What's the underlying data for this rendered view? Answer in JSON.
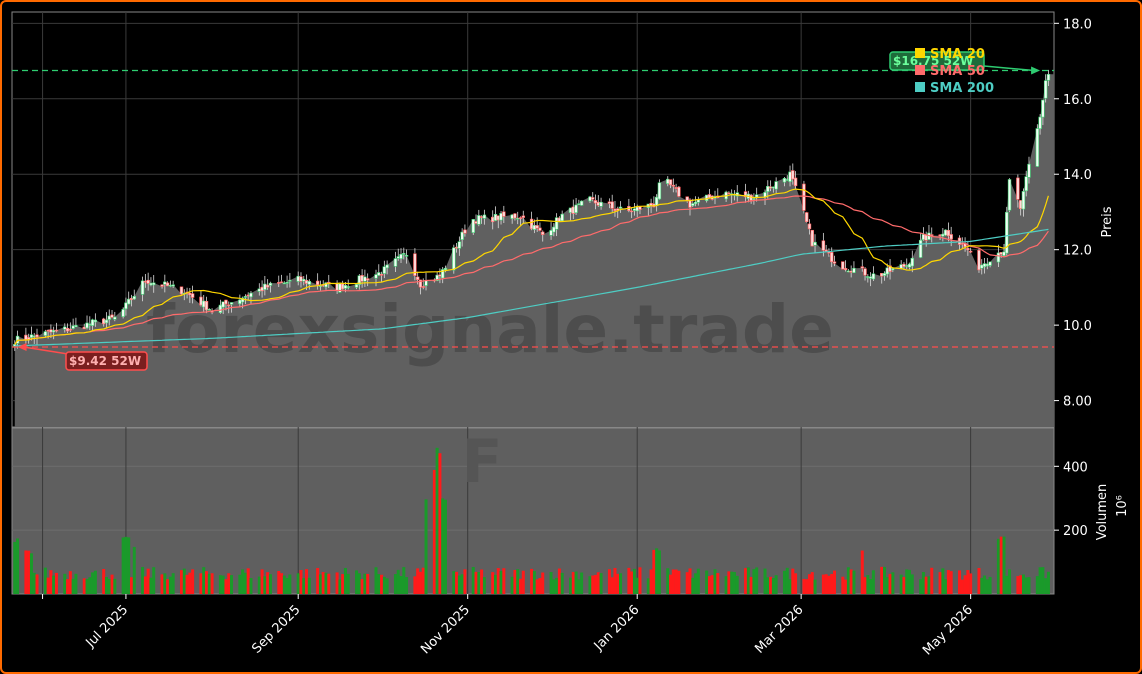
{
  "chart_data": {
    "type": "candlestick",
    "watermark": "forexsignale.trade",
    "ticker": "F",
    "price_axis": {
      "label": "Preis",
      "ylim": [
        7.3,
        18.3
      ],
      "ticks": [
        8.0,
        10.0,
        12.0,
        14.0,
        16.0,
        18.0
      ],
      "tick_labels": [
        "8.00",
        "10.0",
        "12.0",
        "14.0",
        "16.0",
        "18.0"
      ]
    },
    "volume_axis": {
      "label": "Volumen",
      "unit": "10⁶",
      "ylim": [
        0,
        520
      ],
      "ticks": [
        200,
        400
      ],
      "tick_labels": [
        "200",
        "400"
      ]
    },
    "x_axis": {
      "range": [
        "2025-05-21",
        "2026-05-31"
      ],
      "ticks": [
        "2025-06-01",
        "2025-07-01",
        "2025-09-01",
        "2025-11-01",
        "2026-01-01",
        "2026-03-01",
        "2026-05-01"
      ],
      "tick_labels": [
        "",
        "Jul 2025",
        "Sep 2025",
        "Nov 2025",
        "Jan 2026",
        "Mar 2026",
        "May 2026"
      ]
    },
    "legend": {
      "placement": "top-right",
      "items": [
        {
          "label": "SMA 20",
          "color": "#ffd700"
        },
        {
          "label": "SMA 50",
          "color": "#ff6b6b"
        },
        {
          "label": "SMA 200",
          "color": "#4ecdc4"
        }
      ]
    },
    "annotations": {
      "high_52w": {
        "value": 16.75,
        "label": "$16.75 52W",
        "date": "2026-05-26",
        "color": "#2ecc71"
      },
      "low_52w": {
        "value": 9.42,
        "label": "$9.42 52W",
        "date": "2025-05-23",
        "color": "#ff4d4d"
      }
    },
    "price_keypoints": [
      [
        "2025-05-22",
        9.6
      ],
      [
        "2025-06-10",
        9.9
      ],
      [
        "2025-06-28",
        10.2
      ],
      [
        "2025-07-08",
        11.2
      ],
      [
        "2025-07-22",
        10.9
      ],
      [
        "2025-08-01",
        10.4
      ],
      [
        "2025-08-20",
        11.0
      ],
      [
        "2025-09-01",
        11.2
      ],
      [
        "2025-09-15",
        11.0
      ],
      [
        "2025-10-01",
        11.4
      ],
      [
        "2025-10-10",
        11.9
      ],
      [
        "2025-10-15",
        11.1
      ],
      [
        "2025-10-22",
        11.3
      ],
      [
        "2025-10-28",
        12.1
      ],
      [
        "2025-11-02",
        12.8
      ],
      [
        "2025-11-20",
        12.9
      ],
      [
        "2025-11-28",
        12.4
      ],
      [
        "2025-12-05",
        12.9
      ],
      [
        "2025-12-15",
        13.3
      ],
      [
        "2025-12-28",
        13.0
      ],
      [
        "2026-01-07",
        13.2
      ],
      [
        "2026-01-10",
        13.9
      ],
      [
        "2026-01-20",
        13.2
      ],
      [
        "2026-02-01",
        13.5
      ],
      [
        "2026-02-12",
        13.4
      ],
      [
        "2026-02-25",
        14.0
      ],
      [
        "2026-03-01",
        13.2
      ],
      [
        "2026-03-05",
        12.2
      ],
      [
        "2026-03-15",
        11.6
      ],
      [
        "2026-03-28",
        11.3
      ],
      [
        "2026-04-08",
        11.6
      ],
      [
        "2026-04-14",
        12.3
      ],
      [
        "2026-04-22",
        12.5
      ],
      [
        "2026-04-30",
        12.0
      ],
      [
        "2026-05-03",
        11.5
      ],
      [
        "2026-05-10",
        11.9
      ],
      [
        "2026-05-13",
        12.0
      ],
      [
        "2026-05-15",
        13.8
      ],
      [
        "2026-05-19",
        13.1
      ],
      [
        "2026-05-22",
        14.2
      ],
      [
        "2026-05-26",
        15.5
      ],
      [
        "2026-05-28",
        16.5
      ],
      [
        "2026-05-30",
        16.8
      ]
    ],
    "sma200_keypoints": [
      [
        "2025-05-22",
        9.45
      ],
      [
        "2025-08-01",
        9.65
      ],
      [
        "2025-10-01",
        9.9
      ],
      [
        "2025-11-01",
        10.2
      ],
      [
        "2026-01-01",
        11.0
      ],
      [
        "2026-02-15",
        11.65
      ],
      [
        "2026-03-01",
        11.88
      ],
      [
        "2026-04-01",
        12.1
      ],
      [
        "2026-05-01",
        12.22
      ],
      [
        "2026-05-30",
        12.55
      ]
    ],
    "volume_spikes": [
      [
        "2025-05-22",
        175
      ],
      [
        "2025-05-27",
        140
      ],
      [
        "2025-07-01",
        180
      ],
      [
        "2025-07-05",
        155
      ],
      [
        "2025-10-18",
        300
      ],
      [
        "2025-10-20",
        420
      ],
      [
        "2025-10-22",
        470
      ],
      [
        "2025-10-24",
        300
      ],
      [
        "2026-01-08",
        150
      ],
      [
        "2026-03-22",
        145
      ],
      [
        "2026-05-10",
        210
      ],
      [
        "2026-05-12",
        190
      ]
    ]
  }
}
